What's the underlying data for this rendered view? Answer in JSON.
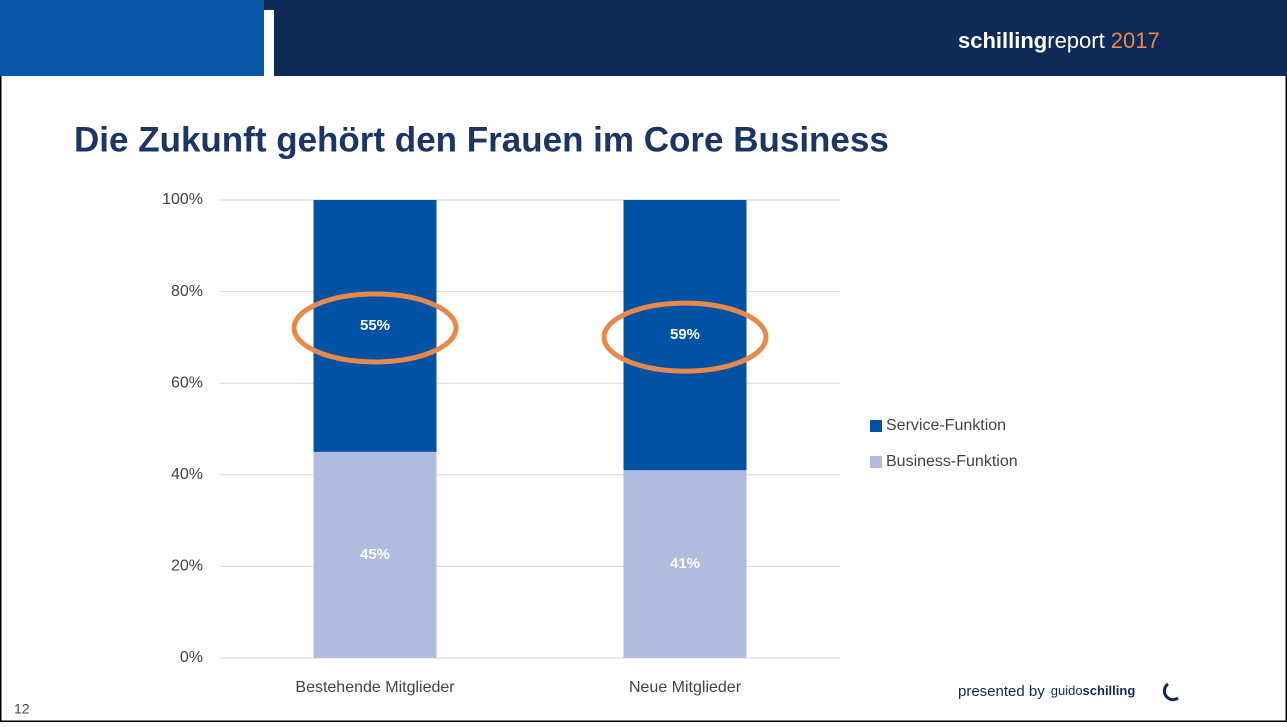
{
  "header": {
    "brand_bold": "schilling",
    "brand_light": "report",
    "year": "2017"
  },
  "footer": {
    "presented_by": "presented by",
    "logo_light": "guido",
    "logo_bold": "schilling",
    "page_number": "12"
  },
  "chart_data": {
    "type": "stacked_bar",
    "title": "Die Zukunft gehört den Frauen im Core Business",
    "categories": [
      "Bestehende Mitglieder",
      "Neue Mitglieder"
    ],
    "series": [
      {
        "name": "Business-Funktion",
        "color": "#b0bbdf",
        "values": [
          45,
          41
        ],
        "value_labels": [
          "45%",
          "41%"
        ]
      },
      {
        "name": "Service-Funktion",
        "color": "#0052a5",
        "values": [
          55,
          59
        ],
        "value_labels": [
          "55%",
          "59%"
        ]
      }
    ],
    "ylim": [
      0,
      100
    ],
    "yticks": [
      {
        "value": 0,
        "label": "0%"
      },
      {
        "value": 20,
        "label": "20%"
      },
      {
        "value": 40,
        "label": "40%"
      },
      {
        "value": 60,
        "label": "60%"
      },
      {
        "value": 80,
        "label": "80%"
      },
      {
        "value": 100,
        "label": "100%"
      }
    ],
    "grid": true,
    "legend": "right"
  }
}
